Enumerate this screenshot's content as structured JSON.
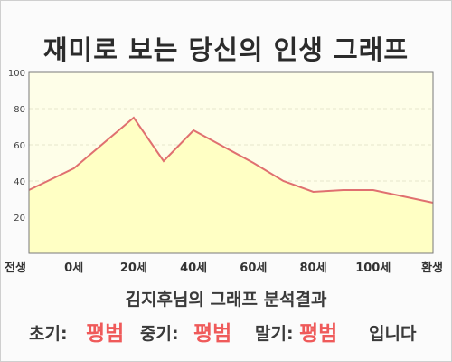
{
  "title": "재미로 보는 당신의 인생 그래프",
  "subtitle": "김지후님의 그래프 분석결과",
  "result": {
    "early_label": "초기:",
    "early_value": "평범",
    "middle_label": "중기:",
    "middle_value": "평범",
    "late_label": "말기:",
    "late_value": "평범",
    "suffix": "입니다"
  },
  "colors": {
    "line": "#e07070",
    "fill": "#ffffc4",
    "plot_bg": "#fefee8",
    "grid": "#e6e6cc",
    "accent_text": "#ef5a5a"
  },
  "chart_data": {
    "type": "area",
    "title": "재미로 보는 당신의 인생 그래프",
    "x_labels": [
      "전생",
      "0세",
      "20세",
      "40세",
      "60세",
      "80세",
      "100세",
      "환생"
    ],
    "x": [
      -15,
      0,
      20,
      30,
      40,
      50,
      60,
      70,
      80,
      90,
      100,
      120
    ],
    "values": [
      35,
      47,
      75,
      51,
      68,
      59,
      50,
      40,
      34,
      35,
      35,
      28
    ],
    "yticks": [
      20,
      40,
      60,
      80,
      100
    ],
    "ylim": [
      0,
      100
    ],
    "grid": true,
    "legend": "none"
  }
}
